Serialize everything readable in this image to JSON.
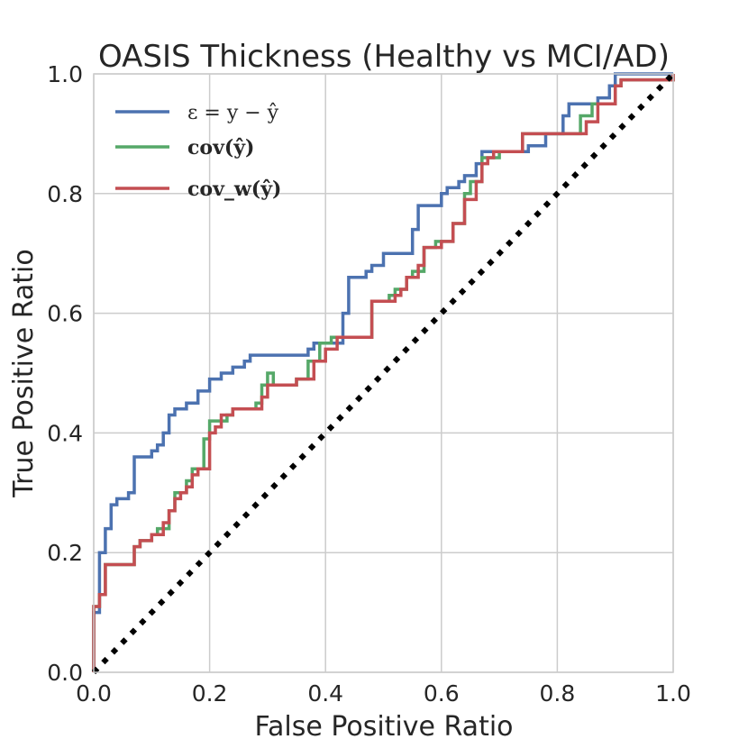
{
  "chart_data": {
    "type": "line",
    "title": "OASIS Thickness (Healthy vs MCI/AD)",
    "xlabel": "False Positive Ratio",
    "ylabel": "True Positive Ratio",
    "xlim": [
      0.0,
      1.0
    ],
    "ylim": [
      0.0,
      1.0
    ],
    "xticks": [
      "0.0",
      "0.2",
      "0.4",
      "0.6",
      "0.8",
      "1.0"
    ],
    "yticks": [
      "0.0",
      "0.2",
      "0.4",
      "0.6",
      "0.8",
      "1.0"
    ],
    "grid": true,
    "legend_position": "top-left",
    "series": [
      {
        "name": "ε = y − ŷ",
        "color": "#4c72b0",
        "style": "step",
        "points": [
          [
            0,
            0
          ],
          [
            0,
            0.1
          ],
          [
            0.01,
            0.1
          ],
          [
            0.01,
            0.2
          ],
          [
            0.02,
            0.2
          ],
          [
            0.02,
            0.24
          ],
          [
            0.03,
            0.24
          ],
          [
            0.03,
            0.28
          ],
          [
            0.04,
            0.28
          ],
          [
            0.04,
            0.29
          ],
          [
            0.06,
            0.29
          ],
          [
            0.06,
            0.3
          ],
          [
            0.07,
            0.3
          ],
          [
            0.07,
            0.36
          ],
          [
            0.1,
            0.36
          ],
          [
            0.1,
            0.37
          ],
          [
            0.11,
            0.37
          ],
          [
            0.11,
            0.38
          ],
          [
            0.12,
            0.38
          ],
          [
            0.12,
            0.4
          ],
          [
            0.13,
            0.4
          ],
          [
            0.13,
            0.43
          ],
          [
            0.14,
            0.43
          ],
          [
            0.14,
            0.44
          ],
          [
            0.16,
            0.44
          ],
          [
            0.16,
            0.45
          ],
          [
            0.18,
            0.45
          ],
          [
            0.18,
            0.47
          ],
          [
            0.2,
            0.47
          ],
          [
            0.2,
            0.49
          ],
          [
            0.22,
            0.49
          ],
          [
            0.22,
            0.5
          ],
          [
            0.24,
            0.5
          ],
          [
            0.24,
            0.51
          ],
          [
            0.26,
            0.51
          ],
          [
            0.26,
            0.52
          ],
          [
            0.27,
            0.52
          ],
          [
            0.27,
            0.53
          ],
          [
            0.37,
            0.53
          ],
          [
            0.37,
            0.54
          ],
          [
            0.38,
            0.54
          ],
          [
            0.38,
            0.55
          ],
          [
            0.43,
            0.55
          ],
          [
            0.43,
            0.6
          ],
          [
            0.44,
            0.6
          ],
          [
            0.44,
            0.66
          ],
          [
            0.47,
            0.66
          ],
          [
            0.47,
            0.67
          ],
          [
            0.48,
            0.67
          ],
          [
            0.48,
            0.68
          ],
          [
            0.5,
            0.68
          ],
          [
            0.5,
            0.7
          ],
          [
            0.55,
            0.7
          ],
          [
            0.55,
            0.74
          ],
          [
            0.56,
            0.74
          ],
          [
            0.56,
            0.78
          ],
          [
            0.6,
            0.78
          ],
          [
            0.6,
            0.8
          ],
          [
            0.61,
            0.8
          ],
          [
            0.61,
            0.81
          ],
          [
            0.63,
            0.81
          ],
          [
            0.63,
            0.82
          ],
          [
            0.64,
            0.82
          ],
          [
            0.64,
            0.83
          ],
          [
            0.66,
            0.83
          ],
          [
            0.66,
            0.85
          ],
          [
            0.67,
            0.85
          ],
          [
            0.67,
            0.87
          ],
          [
            0.75,
            0.87
          ],
          [
            0.75,
            0.88
          ],
          [
            0.78,
            0.88
          ],
          [
            0.78,
            0.9
          ],
          [
            0.81,
            0.9
          ],
          [
            0.81,
            0.93
          ],
          [
            0.82,
            0.93
          ],
          [
            0.82,
            0.95
          ],
          [
            0.87,
            0.95
          ],
          [
            0.87,
            0.96
          ],
          [
            0.89,
            0.96
          ],
          [
            0.89,
            0.98
          ],
          [
            0.9,
            0.98
          ],
          [
            0.9,
            1.0
          ],
          [
            1.0,
            1.0
          ]
        ]
      },
      {
        "name": "cov(ŷ)",
        "color": "#55a868",
        "style": "step",
        "points": [
          [
            0,
            0
          ],
          [
            0,
            0.11
          ],
          [
            0.01,
            0.11
          ],
          [
            0.01,
            0.13
          ],
          [
            0.02,
            0.13
          ],
          [
            0.02,
            0.18
          ],
          [
            0.07,
            0.18
          ],
          [
            0.07,
            0.21
          ],
          [
            0.08,
            0.21
          ],
          [
            0.08,
            0.22
          ],
          [
            0.1,
            0.22
          ],
          [
            0.1,
            0.23
          ],
          [
            0.11,
            0.23
          ],
          [
            0.11,
            0.24
          ],
          [
            0.13,
            0.24
          ],
          [
            0.13,
            0.27
          ],
          [
            0.14,
            0.27
          ],
          [
            0.14,
            0.3
          ],
          [
            0.16,
            0.3
          ],
          [
            0.16,
            0.32
          ],
          [
            0.17,
            0.32
          ],
          [
            0.17,
            0.34
          ],
          [
            0.19,
            0.34
          ],
          [
            0.19,
            0.39
          ],
          [
            0.2,
            0.39
          ],
          [
            0.2,
            0.42
          ],
          [
            0.23,
            0.42
          ],
          [
            0.23,
            0.43
          ],
          [
            0.24,
            0.43
          ],
          [
            0.24,
            0.44
          ],
          [
            0.28,
            0.44
          ],
          [
            0.28,
            0.45
          ],
          [
            0.29,
            0.45
          ],
          [
            0.29,
            0.48
          ],
          [
            0.3,
            0.48
          ],
          [
            0.3,
            0.5
          ],
          [
            0.31,
            0.5
          ],
          [
            0.31,
            0.48
          ],
          [
            0.35,
            0.48
          ],
          [
            0.35,
            0.49
          ],
          [
            0.37,
            0.49
          ],
          [
            0.37,
            0.52
          ],
          [
            0.39,
            0.52
          ],
          [
            0.39,
            0.55
          ],
          [
            0.41,
            0.55
          ],
          [
            0.41,
            0.56
          ],
          [
            0.48,
            0.56
          ],
          [
            0.48,
            0.62
          ],
          [
            0.51,
            0.62
          ],
          [
            0.51,
            0.63
          ],
          [
            0.52,
            0.63
          ],
          [
            0.52,
            0.64
          ],
          [
            0.54,
            0.64
          ],
          [
            0.54,
            0.66
          ],
          [
            0.55,
            0.66
          ],
          [
            0.55,
            0.67
          ],
          [
            0.57,
            0.67
          ],
          [
            0.57,
            0.71
          ],
          [
            0.59,
            0.71
          ],
          [
            0.59,
            0.72
          ],
          [
            0.62,
            0.72
          ],
          [
            0.62,
            0.75
          ],
          [
            0.64,
            0.75
          ],
          [
            0.64,
            0.8
          ],
          [
            0.65,
            0.8
          ],
          [
            0.65,
            0.82
          ],
          [
            0.67,
            0.82
          ],
          [
            0.67,
            0.86
          ],
          [
            0.7,
            0.86
          ],
          [
            0.7,
            0.87
          ],
          [
            0.74,
            0.87
          ],
          [
            0.74,
            0.9
          ],
          [
            0.84,
            0.9
          ],
          [
            0.84,
            0.93
          ],
          [
            0.86,
            0.93
          ],
          [
            0.86,
            0.95
          ],
          [
            0.9,
            0.95
          ],
          [
            0.9,
            0.98
          ],
          [
            0.91,
            0.98
          ],
          [
            0.91,
            0.99
          ],
          [
            1.0,
            0.99
          ],
          [
            1.0,
            1.0
          ]
        ]
      },
      {
        "name": "cov_w(ŷ)",
        "color": "#c44e52",
        "style": "step",
        "points": [
          [
            0,
            0
          ],
          [
            0,
            0.11
          ],
          [
            0.01,
            0.11
          ],
          [
            0.01,
            0.13
          ],
          [
            0.02,
            0.13
          ],
          [
            0.02,
            0.18
          ],
          [
            0.07,
            0.18
          ],
          [
            0.07,
            0.21
          ],
          [
            0.08,
            0.21
          ],
          [
            0.08,
            0.22
          ],
          [
            0.1,
            0.22
          ],
          [
            0.1,
            0.23
          ],
          [
            0.12,
            0.23
          ],
          [
            0.12,
            0.25
          ],
          [
            0.13,
            0.25
          ],
          [
            0.13,
            0.27
          ],
          [
            0.14,
            0.27
          ],
          [
            0.14,
            0.29
          ],
          [
            0.15,
            0.29
          ],
          [
            0.15,
            0.3
          ],
          [
            0.16,
            0.3
          ],
          [
            0.16,
            0.31
          ],
          [
            0.17,
            0.31
          ],
          [
            0.17,
            0.33
          ],
          [
            0.18,
            0.33
          ],
          [
            0.18,
            0.34
          ],
          [
            0.2,
            0.34
          ],
          [
            0.2,
            0.4
          ],
          [
            0.21,
            0.4
          ],
          [
            0.21,
            0.41
          ],
          [
            0.22,
            0.41
          ],
          [
            0.22,
            0.43
          ],
          [
            0.24,
            0.43
          ],
          [
            0.24,
            0.44
          ],
          [
            0.29,
            0.44
          ],
          [
            0.29,
            0.46
          ],
          [
            0.3,
            0.46
          ],
          [
            0.3,
            0.48
          ],
          [
            0.35,
            0.48
          ],
          [
            0.35,
            0.49
          ],
          [
            0.38,
            0.49
          ],
          [
            0.38,
            0.52
          ],
          [
            0.4,
            0.52
          ],
          [
            0.4,
            0.54
          ],
          [
            0.42,
            0.54
          ],
          [
            0.42,
            0.56
          ],
          [
            0.48,
            0.56
          ],
          [
            0.48,
            0.62
          ],
          [
            0.52,
            0.62
          ],
          [
            0.52,
            0.63
          ],
          [
            0.53,
            0.63
          ],
          [
            0.53,
            0.64
          ],
          [
            0.54,
            0.64
          ],
          [
            0.54,
            0.66
          ],
          [
            0.56,
            0.66
          ],
          [
            0.56,
            0.68
          ],
          [
            0.57,
            0.68
          ],
          [
            0.57,
            0.71
          ],
          [
            0.6,
            0.71
          ],
          [
            0.6,
            0.72
          ],
          [
            0.62,
            0.72
          ],
          [
            0.62,
            0.75
          ],
          [
            0.64,
            0.75
          ],
          [
            0.64,
            0.79
          ],
          [
            0.66,
            0.79
          ],
          [
            0.66,
            0.82
          ],
          [
            0.67,
            0.82
          ],
          [
            0.67,
            0.85
          ],
          [
            0.68,
            0.85
          ],
          [
            0.68,
            0.86
          ],
          [
            0.69,
            0.86
          ],
          [
            0.69,
            0.87
          ],
          [
            0.74,
            0.87
          ],
          [
            0.74,
            0.9
          ],
          [
            0.85,
            0.9
          ],
          [
            0.85,
            0.92
          ],
          [
            0.87,
            0.92
          ],
          [
            0.87,
            0.95
          ],
          [
            0.9,
            0.95
          ],
          [
            0.9,
            0.98
          ],
          [
            0.91,
            0.98
          ],
          [
            0.91,
            0.99
          ],
          [
            1.0,
            0.99
          ],
          [
            1.0,
            1.0
          ]
        ]
      }
    ],
    "reference_line": {
      "name": "chance diagonal",
      "color": "#000000",
      "style": "dotted",
      "points": [
        [
          0,
          0
        ],
        [
          1,
          1
        ]
      ]
    }
  }
}
